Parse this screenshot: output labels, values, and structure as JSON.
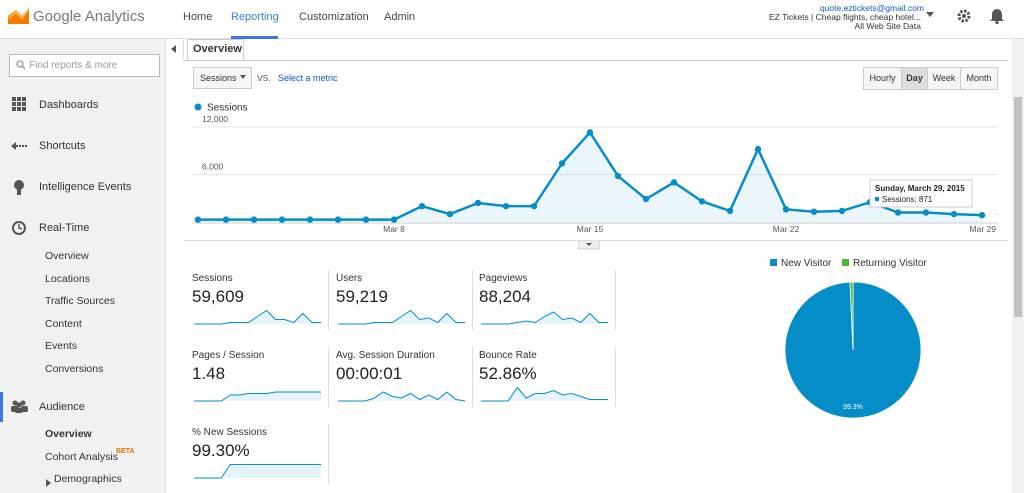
{
  "header": {
    "logo": "Google Analytics",
    "nav": [
      "Home",
      "Reporting",
      "Customization",
      "Admin"
    ],
    "active_nav": 1,
    "account_email": "quote.eztickets@gmail.com",
    "account_name": "EZ Tickets | Cheap flights, cheap hotel...",
    "property": "All Web Site Data"
  },
  "sidebar": {
    "search": "Find reports & more",
    "sections": [
      {
        "label": "Dashboards"
      },
      {
        "label": "Shortcuts"
      },
      {
        "label": "Intelligence Events"
      },
      {
        "label": "Real-Time",
        "items": [
          "Overview",
          "Locations",
          "Traffic Sources",
          "Content",
          "Events",
          "Conversions"
        ]
      },
      {
        "label": "Audience",
        "items": [
          "Overview",
          "Cohort Analysis",
          "Demographics"
        ]
      }
    ],
    "beta": "BETA"
  },
  "toolbar": {
    "tab": "Overview",
    "metric": "Sessions",
    "vs": "VS.",
    "compare": "Select a metric",
    "granularity": [
      "Hourly",
      "Day",
      "Week",
      "Month"
    ],
    "active_granularity": 1
  },
  "chart_data": [
    {
      "type": "line",
      "x": [
        null,
        null,
        null,
        null,
        null,
        null,
        null,
        "Mar 8",
        null,
        null,
        null,
        null,
        null,
        null,
        "Mar 15",
        null,
        null,
        null,
        null,
        null,
        null,
        "Mar 22",
        null,
        null,
        null,
        null,
        null,
        null,
        "Mar 29"
      ],
      "series": [
        {
          "name": "Sessions",
          "color": "#058dc7",
          "values": [
            300,
            300,
            300,
            300,
            300,
            300,
            300,
            300,
            2000,
            1000,
            2400,
            2000,
            2000,
            7400,
            11300,
            5800,
            2900,
            5000,
            2600,
            1400,
            9200,
            1600,
            1300,
            1400,
            2500,
            1200,
            1200,
            1000,
            871
          ]
        }
      ],
      "ylim": [
        0,
        13000
      ],
      "yticks": [
        {
          "value": 6000,
          "label": "6,000"
        },
        {
          "value": 12000,
          "label": "12,000"
        }
      ],
      "grid": true,
      "tooltip": {
        "title": "Sunday, March 29, 2015",
        "text": "Sessions: 871"
      }
    },
    {
      "type": "pie",
      "categories": [
        "New Visitor",
        "Returning Visitor"
      ],
      "values": [
        99.3,
        0.7
      ],
      "colors": [
        "#058dc7",
        "#50b432"
      ],
      "slice_label": "99.3%"
    }
  ],
  "metrics": [
    {
      "label": "Sessions",
      "value": "59,609",
      "trend": [
        0,
        0,
        0,
        0,
        1,
        1,
        1,
        5,
        9,
        3,
        3,
        1,
        7,
        1,
        1
      ]
    },
    {
      "label": "Users",
      "value": "59,219",
      "trend": [
        0,
        0,
        0,
        0,
        1,
        1,
        1,
        5,
        9,
        3,
        4,
        1,
        7,
        1,
        1
      ]
    },
    {
      "label": "Pageviews",
      "value": "88,204",
      "trend": [
        0,
        0,
        0,
        0,
        1,
        2,
        1,
        5,
        8,
        3,
        4,
        1,
        7,
        1,
        1
      ]
    },
    {
      "label": "Pages / Session",
      "value": "1.48",
      "trend": [
        0,
        0,
        0,
        0,
        4,
        4,
        5,
        5,
        5,
        6,
        6,
        6,
        6,
        6,
        6
      ]
    },
    {
      "label": "Avg. Session Duration",
      "value": "00:00:01",
      "trend": [
        0,
        0,
        0,
        0,
        2,
        6,
        3,
        2,
        5,
        1,
        4,
        1,
        6,
        1,
        0
      ]
    },
    {
      "label": "Bounce Rate",
      "value": "52.86%",
      "trend": [
        0,
        0,
        0,
        0,
        9,
        2,
        5,
        5,
        7,
        4,
        5,
        3,
        1,
        1,
        1
      ]
    },
    {
      "label": "% New Sessions",
      "value": "99.30%",
      "trend": [
        0,
        0,
        0,
        0,
        9,
        9,
        9,
        9,
        9,
        9,
        9,
        9,
        9,
        9,
        9
      ]
    }
  ]
}
